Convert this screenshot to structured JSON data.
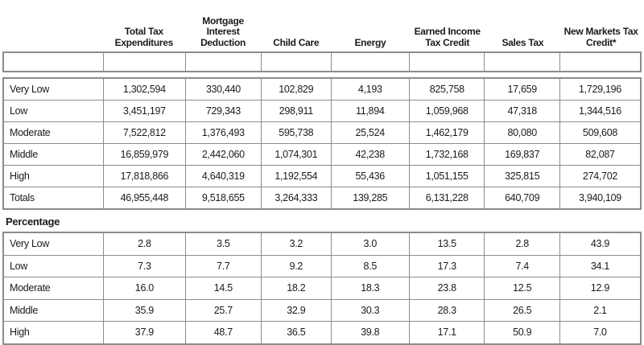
{
  "page": {
    "background": "#ffffff",
    "border_color": "#8c8c8c",
    "text_color": "#1b1b1b"
  },
  "table": {
    "column_headers": [
      "Total Tax Expenditures",
      "Mortgage Interest Deduction",
      "Child Care",
      "Energy",
      "Earned Income Tax Credit",
      "Sales Tax",
      "New Markets Tax Credit*"
    ],
    "amounts": {
      "rows": [
        {
          "label": "Very Low",
          "values": [
            "1,302,594",
            "330,440",
            "102,829",
            "4,193",
            "825,758",
            "17,659",
            "1,729,196"
          ]
        },
        {
          "label": "Low",
          "values": [
            "3,451,197",
            "729,343",
            "298,911",
            "11,894",
            "1,059,968",
            "47,318",
            "1,344,516"
          ]
        },
        {
          "label": "Moderate",
          "values": [
            "7,522,812",
            "1,376,493",
            "595,738",
            "25,524",
            "1,462,179",
            "80,080",
            "509,608"
          ]
        },
        {
          "label": "Middle",
          "values": [
            "16,859,979",
            "2,442,060",
            "1,074,301",
            "42,238",
            "1,732,168",
            "169,837",
            "82,087"
          ]
        },
        {
          "label": "High",
          "values": [
            "17,818,866",
            "4,640,319",
            "1,192,554",
            "55,436",
            "1,051,155",
            "325,815",
            "274,702"
          ]
        },
        {
          "label": "Totals",
          "values": [
            "46,955,448",
            "9,518,655",
            "3,264,333",
            "139,285",
            "6,131,228",
            "640,709",
            "3,940,109"
          ]
        }
      ]
    },
    "percentage_heading": "Percentage",
    "percentages": {
      "rows": [
        {
          "label": "Very Low",
          "values": [
            "2.8",
            "3.5",
            "3.2",
            "3.0",
            "13.5",
            "2.8",
            "43.9"
          ]
        },
        {
          "label": "Low",
          "values": [
            "7.3",
            "7.7",
            "9.2",
            "8.5",
            "17.3",
            "7.4",
            "34.1"
          ]
        },
        {
          "label": "Moderate",
          "values": [
            "16.0",
            "14.5",
            "18.2",
            "18.3",
            "23.8",
            "12.5",
            "12.9"
          ]
        },
        {
          "label": "Middle",
          "values": [
            "35.9",
            "25.7",
            "32.9",
            "30.3",
            "28.3",
            "26.5",
            "2.1"
          ]
        },
        {
          "label": "High",
          "values": [
            "37.9",
            "48.7",
            "36.5",
            "39.8",
            "17.1",
            "50.9",
            "7.0"
          ]
        }
      ]
    }
  }
}
